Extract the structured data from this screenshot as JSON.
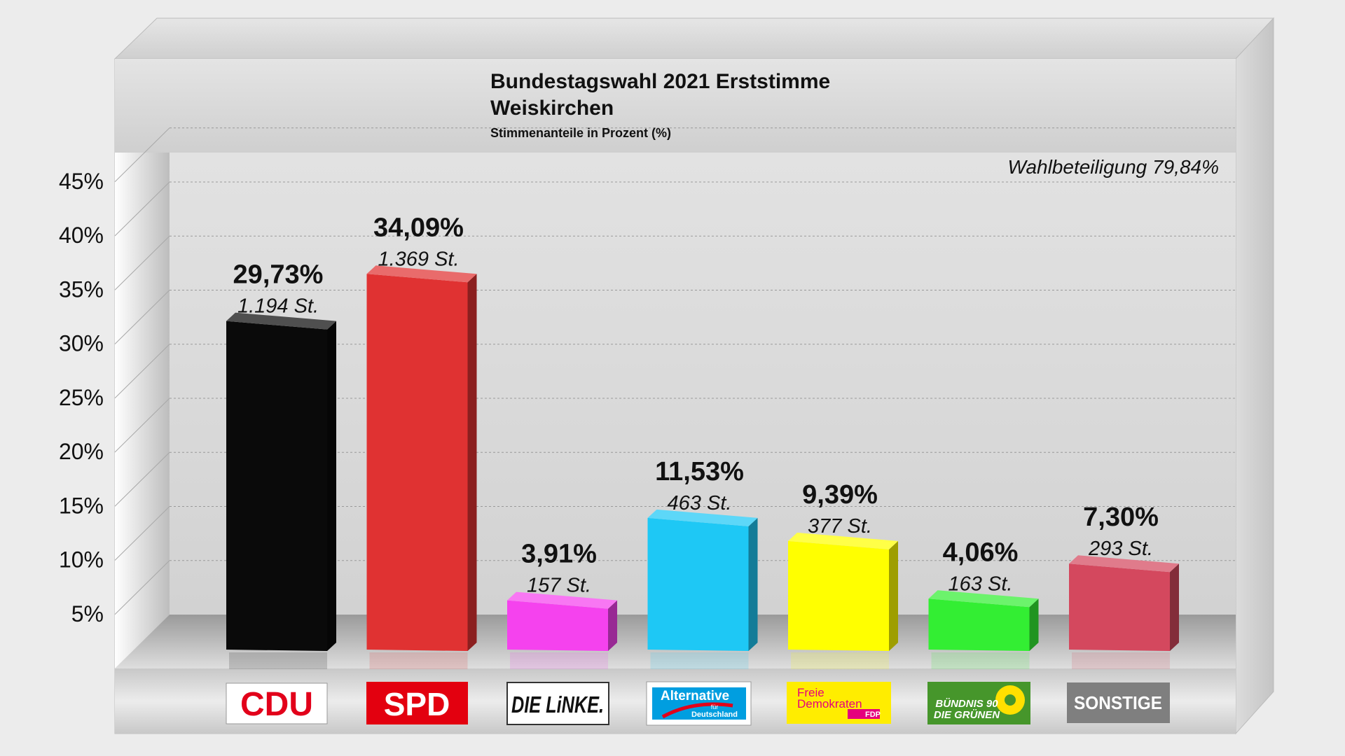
{
  "chart_data": {
    "type": "bar",
    "title": "Bundestagswahl 2021 Erststimme",
    "subtitle": "Weiskirchen",
    "unit_note": "Stimmenanteile in Prozent (%)",
    "annotation": "Wahlbeteiligung 79,84%",
    "ylim": [
      0,
      45
    ],
    "yticks": [
      5,
      10,
      15,
      20,
      25,
      30,
      35,
      40,
      45
    ],
    "ytick_labels": [
      "5%",
      "10%",
      "15%",
      "20%",
      "25%",
      "30%",
      "35%",
      "40%",
      "45%"
    ],
    "grid": true,
    "categories": [
      "CDU",
      "SPD",
      "DIE LINKE",
      "Alternative für Deutschland",
      "Freie Demokraten FDP",
      "BÜNDNIS 90 DIE GRÜNEN",
      "SONSTIGE"
    ],
    "values": [
      29.73,
      34.09,
      3.91,
      11.53,
      9.39,
      4.06,
      7.3
    ],
    "value_labels": [
      "29,73%",
      "34,09%",
      "3,91%",
      "11,53%",
      "9,39%",
      "4,06%",
      "7,30%"
    ],
    "vote_labels": [
      "1.194 St.",
      "1.369 St.",
      "157 St.",
      "463 St.",
      "377 St.",
      "163 St.",
      "293 St."
    ],
    "colors": [
      "#0a0a0a",
      "#e03232",
      "#f542ee",
      "#1ec8f5",
      "#ffff00",
      "#33ee33",
      "#d4485e"
    ]
  },
  "logos": {
    "cdu": "CDU",
    "spd": "SPD",
    "linke": "DIE LiNKE.",
    "afd_line1": "Alternative",
    "afd_line2": "für",
    "afd_line3": "Deutschland",
    "fdp_line1": "Freie",
    "fdp_line2": "Demokraten",
    "fdp_badge": "FDP",
    "gruene_line1": "BÜNDNIS 90",
    "gruene_line2": "DIE GRÜNEN",
    "sonstige": "SONSTIGE"
  }
}
